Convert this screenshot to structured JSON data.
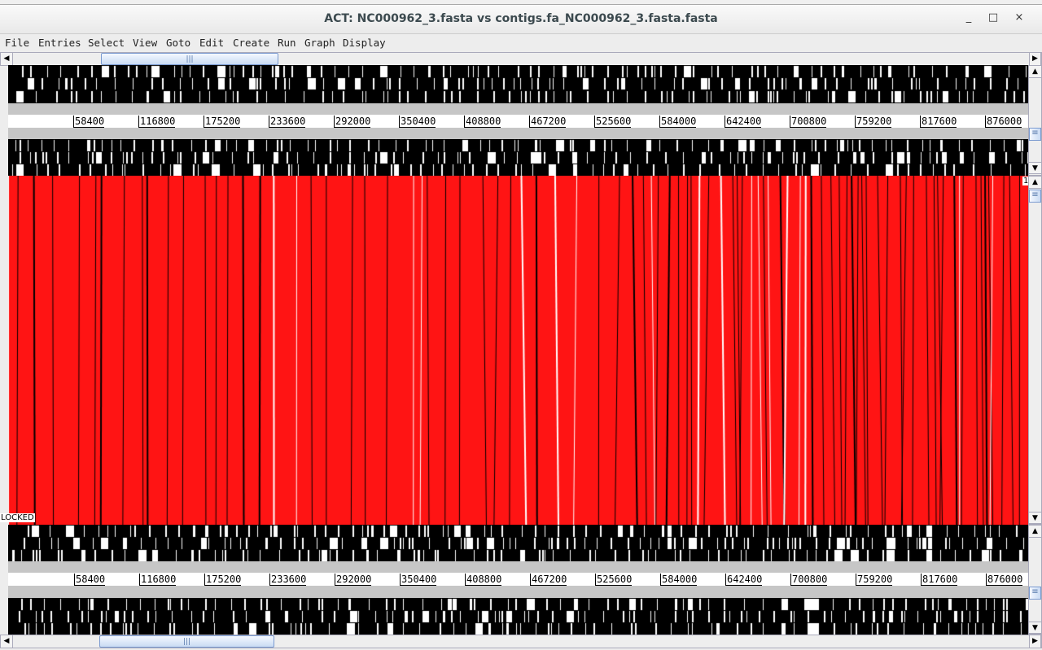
{
  "window": {
    "title": "ACT: NC000962_3.fasta vs contigs.fa_NC000962_3.fasta.fasta",
    "minimize": "_",
    "maximize": "□",
    "close": "×"
  },
  "menu": [
    "File",
    "Entries",
    "Select",
    "View",
    "Goto",
    "Edit",
    "Create",
    "Run",
    "Graph",
    "Display"
  ],
  "ruler_top": [
    "58400",
    "116800",
    "175200",
    "233600",
    "292000",
    "350400",
    "408800",
    "467200",
    "525600",
    "584000",
    "642400",
    "700800",
    "759200",
    "817600",
    "876000"
  ],
  "ruler_bottom": [
    "58400",
    "116800",
    "175200",
    "233600",
    "292000",
    "350400",
    "408800",
    "467200",
    "525600",
    "584000",
    "642400",
    "700800",
    "759200",
    "817600",
    "876000"
  ],
  "comparison": {
    "locked_label": "LOCKED",
    "marker_label": "1",
    "match_color": "#ff1414"
  },
  "colors": {
    "feature_track": "#000000",
    "gap": "#ffffff",
    "separator": "#c6c6c6"
  }
}
